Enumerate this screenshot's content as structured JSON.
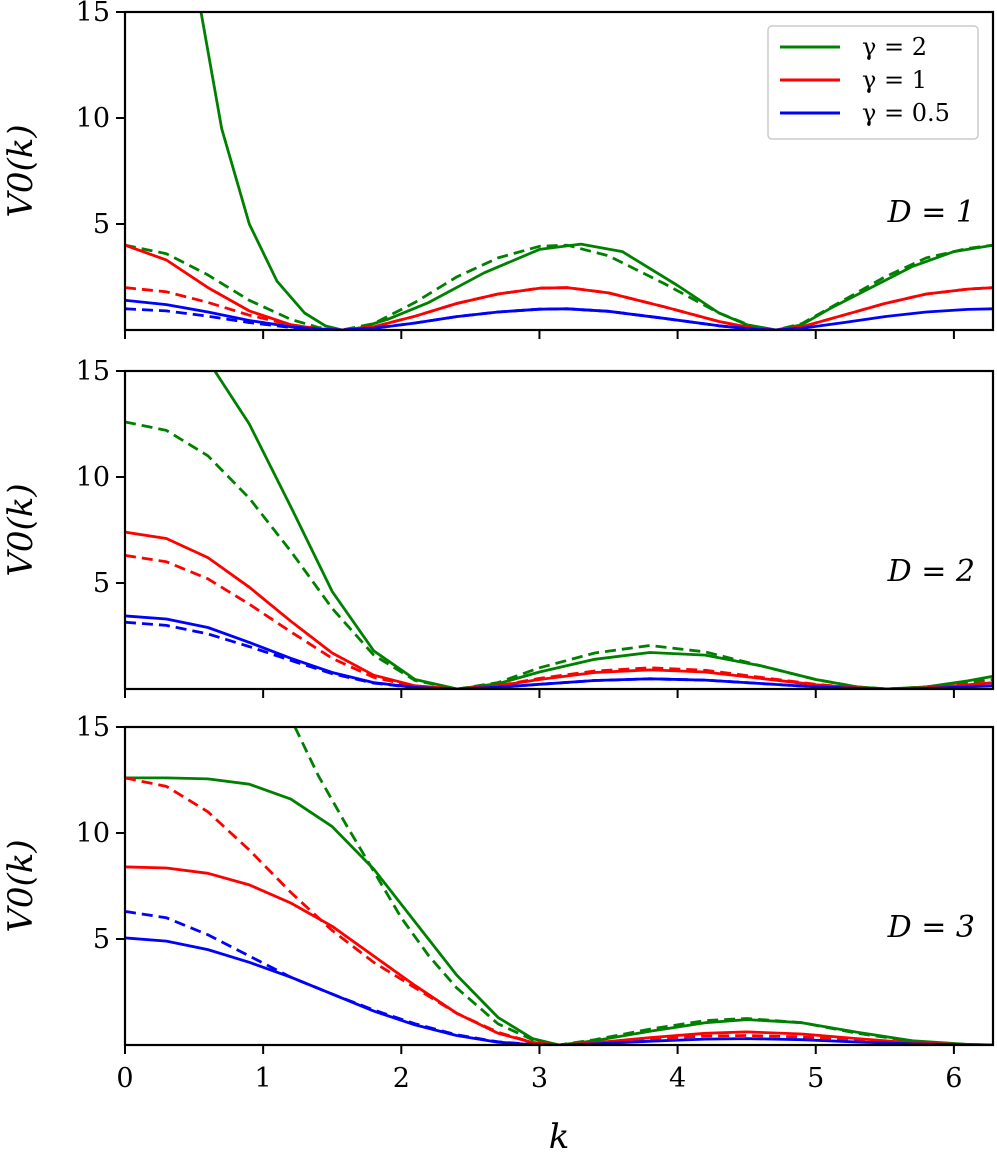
{
  "figure": {
    "xlabel": "k",
    "legend": {
      "placement": "top-right",
      "entries": [
        {
          "label": "γ = 2",
          "color": "#008000"
        },
        {
          "label": "γ = 1",
          "color": "#ff0000"
        },
        {
          "label": "γ = 0.5",
          "color": "#0000ff"
        }
      ]
    }
  },
  "chart_data": [
    {
      "type": "line",
      "panel_label": "D = 1",
      "ylabel": "V0(k)",
      "xlim": [
        0,
        6.283
      ],
      "ylim": [
        0,
        15
      ],
      "xticks": [
        0,
        1,
        2,
        3,
        4,
        5,
        6
      ],
      "yticks": [
        5,
        10,
        15
      ],
      "show_xtick_labels": false,
      "series": [
        {
          "name": "γ = 2",
          "style": "solid",
          "color": "#008000",
          "x": [
            0.55,
            0.7,
            0.9,
            1.1,
            1.3,
            1.45,
            1.571,
            1.7,
            1.9,
            2.2,
            2.6,
            3.0,
            3.3,
            3.6,
            4.0,
            4.3,
            4.5,
            4.712,
            4.9,
            5.1,
            5.4,
            5.7,
            6.0,
            6.283
          ],
          "y": [
            15,
            9.5,
            5.0,
            2.3,
            0.8,
            0.2,
            0.0,
            0.1,
            0.5,
            1.3,
            2.7,
            3.8,
            4.05,
            3.7,
            2.1,
            0.8,
            0.25,
            0.0,
            0.25,
            1.0,
            2.0,
            3.0,
            3.7,
            4.0
          ]
        },
        {
          "name": "γ = 2",
          "style": "dashed",
          "color": "#008000",
          "x": [
            0,
            0.3,
            0.6,
            0.9,
            1.2,
            1.4,
            1.571,
            1.8,
            2.1,
            2.4,
            2.7,
            3.0,
            3.2,
            3.5,
            3.9,
            4.3,
            4.55,
            4.712,
            4.9,
            5.2,
            5.5,
            5.8,
            6.1,
            6.283
          ],
          "y": [
            4.0,
            3.6,
            2.6,
            1.4,
            0.5,
            0.12,
            0.0,
            0.3,
            1.3,
            2.5,
            3.4,
            3.95,
            4.0,
            3.5,
            2.2,
            0.8,
            0.15,
            0.0,
            0.3,
            1.4,
            2.5,
            3.4,
            3.85,
            4.0
          ]
        },
        {
          "name": "γ = 1",
          "style": "solid",
          "color": "#ff0000",
          "x": [
            0,
            0.3,
            0.6,
            0.9,
            1.2,
            1.4,
            1.571,
            1.8,
            2.1,
            2.4,
            2.7,
            3.0,
            3.2,
            3.5,
            3.9,
            4.3,
            4.55,
            4.712,
            4.9,
            5.2,
            5.5,
            5.8,
            6.1,
            6.283
          ],
          "y": [
            4.0,
            3.3,
            2.0,
            0.9,
            0.25,
            0.05,
            0.0,
            0.15,
            0.65,
            1.25,
            1.7,
            1.97,
            2.0,
            1.75,
            1.1,
            0.4,
            0.08,
            0.0,
            0.15,
            0.7,
            1.25,
            1.7,
            1.93,
            2.0
          ]
        },
        {
          "name": "γ = 1",
          "style": "dashed",
          "color": "#ff0000",
          "x": [
            0,
            0.3,
            0.6,
            0.9,
            1.2,
            1.4,
            1.571,
            1.8,
            2.1,
            2.4,
            2.7,
            3.0,
            3.2,
            3.5,
            3.9,
            4.3,
            4.55,
            4.712,
            4.9,
            5.2,
            5.5,
            5.8,
            6.1,
            6.283
          ],
          "y": [
            2.0,
            1.8,
            1.3,
            0.7,
            0.25,
            0.06,
            0.0,
            0.15,
            0.65,
            1.25,
            1.7,
            1.97,
            2.0,
            1.75,
            1.1,
            0.4,
            0.08,
            0.0,
            0.15,
            0.7,
            1.25,
            1.7,
            1.93,
            2.0
          ]
        },
        {
          "name": "γ = 0.5",
          "style": "solid",
          "color": "#0000ff",
          "x": [
            0,
            0.3,
            0.6,
            0.9,
            1.2,
            1.4,
            1.571,
            1.8,
            2.1,
            2.4,
            2.7,
            3.0,
            3.2,
            3.5,
            3.9,
            4.3,
            4.55,
            4.712,
            4.9,
            5.2,
            5.5,
            5.8,
            6.1,
            6.283
          ],
          "y": [
            1.4,
            1.2,
            0.85,
            0.45,
            0.15,
            0.04,
            0.0,
            0.08,
            0.33,
            0.63,
            0.85,
            0.98,
            1.0,
            0.88,
            0.55,
            0.2,
            0.04,
            0.0,
            0.08,
            0.35,
            0.63,
            0.85,
            0.97,
            1.0
          ]
        },
        {
          "name": "γ = 0.5",
          "style": "dashed",
          "color": "#0000ff",
          "x": [
            0,
            0.3,
            0.6,
            0.9,
            1.2,
            1.4,
            1.571,
            1.8,
            2.1,
            2.4,
            2.7,
            3.0,
            3.2,
            3.5,
            3.9,
            4.3,
            4.55,
            4.712
          ],
          "y": [
            1.0,
            0.9,
            0.65,
            0.35,
            0.12,
            0.03,
            0.0,
            0.08,
            0.33,
            0.63,
            0.85,
            0.98,
            1.0,
            0.88,
            0.55,
            0.2,
            0.04,
            0.0
          ]
        }
      ]
    },
    {
      "type": "line",
      "panel_label": "D = 2",
      "ylabel": "V0(k)",
      "xlim": [
        0,
        6.283
      ],
      "ylim": [
        0,
        15
      ],
      "xticks": [
        0,
        1,
        2,
        3,
        4,
        5,
        6
      ],
      "yticks": [
        5,
        10,
        15
      ],
      "show_xtick_labels": false,
      "series": [
        {
          "name": "γ = 2",
          "style": "solid",
          "color": "#008000",
          "x": [
            0.65,
            0.9,
            1.2,
            1.5,
            1.8,
            2.1,
            2.405,
            2.7,
            3.0,
            3.4,
            3.8,
            4.2,
            4.6,
            5.0,
            5.3,
            5.52,
            5.8,
            6.1,
            6.283
          ],
          "y": [
            15,
            12.5,
            8.6,
            4.6,
            1.8,
            0.45,
            0.0,
            0.25,
            0.8,
            1.4,
            1.72,
            1.6,
            1.1,
            0.45,
            0.1,
            0.0,
            0.1,
            0.38,
            0.6
          ]
        },
        {
          "name": "γ = 2",
          "style": "dashed",
          "color": "#008000",
          "x": [
            0,
            0.3,
            0.6,
            0.9,
            1.2,
            1.5,
            1.8,
            2.1,
            2.405,
            2.7,
            3.0,
            3.4,
            3.8,
            4.2,
            4.6,
            5.0,
            5.3,
            5.52,
            5.8,
            6.1,
            6.283
          ],
          "y": [
            12.6,
            12.2,
            11.0,
            9.0,
            6.5,
            3.8,
            1.6,
            0.4,
            0.0,
            0.3,
            1.0,
            1.7,
            2.05,
            1.75,
            1.1,
            0.45,
            0.1,
            0.0,
            0.1,
            0.3,
            0.45
          ]
        },
        {
          "name": "γ = 1",
          "style": "solid",
          "color": "#ff0000",
          "x": [
            0,
            0.3,
            0.6,
            0.9,
            1.2,
            1.5,
            1.8,
            2.1,
            2.405,
            2.7,
            3.0,
            3.4,
            3.8,
            4.2,
            4.6,
            5.0,
            5.3,
            5.52,
            5.8,
            6.1,
            6.283
          ],
          "y": [
            7.4,
            7.1,
            6.2,
            4.8,
            3.2,
            1.7,
            0.65,
            0.15,
            0.0,
            0.15,
            0.45,
            0.78,
            0.9,
            0.8,
            0.5,
            0.2,
            0.05,
            0.0,
            0.05,
            0.2,
            0.3
          ]
        },
        {
          "name": "γ = 1",
          "style": "dashed",
          "color": "#ff0000",
          "x": [
            0,
            0.3,
            0.6,
            0.9,
            1.2,
            1.5,
            1.8,
            2.1,
            2.405,
            2.7,
            3.0,
            3.4,
            3.8,
            4.2,
            4.6,
            5.0,
            5.3,
            5.52,
            5.8,
            6.1,
            6.283
          ],
          "y": [
            6.3,
            6.0,
            5.2,
            4.0,
            2.7,
            1.45,
            0.55,
            0.12,
            0.0,
            0.15,
            0.5,
            0.85,
            1.0,
            0.88,
            0.55,
            0.22,
            0.05,
            0.0,
            0.05,
            0.15,
            0.25
          ]
        },
        {
          "name": "γ = 0.5",
          "style": "solid",
          "color": "#0000ff",
          "x": [
            0,
            0.3,
            0.6,
            0.9,
            1.2,
            1.5,
            1.8,
            2.1,
            2.405,
            2.7,
            3.0,
            3.4,
            3.8,
            4.2,
            4.6,
            5.0,
            5.3,
            5.52,
            5.8,
            6.1,
            6.283
          ],
          "y": [
            3.45,
            3.3,
            2.9,
            2.2,
            1.45,
            0.78,
            0.3,
            0.07,
            0.0,
            0.08,
            0.22,
            0.4,
            0.48,
            0.42,
            0.26,
            0.1,
            0.03,
            0.0,
            0.03,
            0.1,
            0.15
          ]
        },
        {
          "name": "γ = 0.5",
          "style": "dashed",
          "color": "#0000ff",
          "x": [
            0,
            0.3,
            0.6,
            0.9,
            1.2,
            1.5,
            1.8,
            2.1,
            2.405,
            2.7,
            3.0,
            3.4,
            3.8,
            4.2,
            4.6,
            5.0,
            5.3,
            5.52
          ],
          "y": [
            3.15,
            3.0,
            2.6,
            2.0,
            1.35,
            0.72,
            0.28,
            0.06,
            0.0,
            0.08,
            0.22,
            0.4,
            0.48,
            0.42,
            0.26,
            0.1,
            0.03,
            0.0
          ]
        }
      ]
    },
    {
      "type": "line",
      "panel_label": "D = 3",
      "ylabel": "V0(k)",
      "xlim": [
        0,
        6.283
      ],
      "ylim": [
        0,
        15
      ],
      "xticks": [
        0,
        1,
        2,
        3,
        4,
        5,
        6
      ],
      "yticks": [
        5,
        10,
        15
      ],
      "show_xtick_labels": true,
      "xtick_labels": [
        "0",
        "1",
        "2",
        "3",
        "4",
        "5",
        "6"
      ],
      "series": [
        {
          "name": "γ = 2",
          "style": "solid",
          "color": "#008000",
          "x": [
            0,
            0.3,
            0.6,
            0.9,
            1.2,
            1.5,
            1.8,
            2.1,
            2.4,
            2.7,
            2.95,
            3.142,
            3.4,
            3.8,
            4.2,
            4.5,
            4.9,
            5.3,
            5.7,
            6.1,
            6.283
          ],
          "y": [
            12.6,
            12.6,
            12.55,
            12.3,
            11.6,
            10.3,
            8.3,
            5.8,
            3.3,
            1.3,
            0.3,
            0.0,
            0.2,
            0.65,
            1.05,
            1.2,
            1.05,
            0.6,
            0.2,
            0.03,
            0.0
          ]
        },
        {
          "name": "γ = 2",
          "style": "dashed",
          "color": "#008000",
          "x": [
            1.23,
            1.4,
            1.6,
            1.8,
            2.0,
            2.2,
            2.4,
            2.7,
            2.95,
            3.142,
            3.4,
            3.8,
            4.2,
            4.5,
            4.9,
            5.3,
            5.7,
            6.1,
            6.283
          ],
          "y": [
            15,
            12.7,
            10.4,
            8.2,
            6.0,
            4.2,
            2.7,
            1.0,
            0.25,
            0.0,
            0.25,
            0.75,
            1.15,
            1.25,
            1.05,
            0.55,
            0.18,
            0.02,
            0.0
          ]
        },
        {
          "name": "γ = 1",
          "style": "solid",
          "color": "#ff0000",
          "x": [
            0,
            0.3,
            0.6,
            0.9,
            1.2,
            1.5,
            1.8,
            2.1,
            2.4,
            2.7,
            2.95,
            3.142,
            3.4,
            3.8,
            4.2,
            4.5,
            4.9,
            5.3,
            5.7,
            6.1,
            6.283
          ],
          "y": [
            8.4,
            8.35,
            8.1,
            7.55,
            6.7,
            5.6,
            4.2,
            2.8,
            1.5,
            0.55,
            0.12,
            0.0,
            0.1,
            0.35,
            0.55,
            0.62,
            0.52,
            0.3,
            0.1,
            0.02,
            0.0
          ]
        },
        {
          "name": "γ = 1",
          "style": "dashed",
          "color": "#ff0000",
          "x": [
            0,
            0.3,
            0.6,
            0.9,
            1.2,
            1.5,
            1.8,
            2.1,
            2.4,
            2.7,
            2.95,
            3.142,
            3.4,
            3.8,
            4.2,
            4.5,
            4.9,
            5.3,
            5.7,
            6.1,
            6.283
          ],
          "y": [
            12.6,
            12.2,
            11.0,
            9.2,
            7.2,
            5.4,
            3.9,
            2.7,
            1.5,
            0.6,
            0.12,
            0.0,
            0.1,
            0.3,
            0.42,
            0.45,
            0.38,
            0.22,
            0.08,
            0.01,
            0.0
          ]
        },
        {
          "name": "γ = 0.5",
          "style": "solid",
          "color": "#0000ff",
          "x": [
            0,
            0.3,
            0.6,
            0.9,
            1.2,
            1.5,
            1.8,
            2.1,
            2.4,
            2.7,
            2.95,
            3.142,
            3.4,
            3.8,
            4.2,
            4.5,
            4.9,
            5.3,
            5.7,
            6.1,
            6.283
          ],
          "y": [
            5.05,
            4.9,
            4.5,
            3.9,
            3.2,
            2.4,
            1.6,
            0.95,
            0.45,
            0.13,
            0.02,
            0.0,
            0.05,
            0.18,
            0.28,
            0.3,
            0.25,
            0.14,
            0.05,
            0.01,
            0.0
          ]
        },
        {
          "name": "γ = 0.5",
          "style": "dashed",
          "color": "#0000ff",
          "x": [
            0,
            0.3,
            0.6,
            0.9,
            1.2,
            1.5,
            1.8,
            2.1,
            2.4,
            2.7,
            2.95,
            3.142
          ],
          "y": [
            6.3,
            6.0,
            5.2,
            4.2,
            3.2,
            2.4,
            1.65,
            1.0,
            0.48,
            0.15,
            0.03,
            0.0
          ]
        }
      ]
    }
  ]
}
